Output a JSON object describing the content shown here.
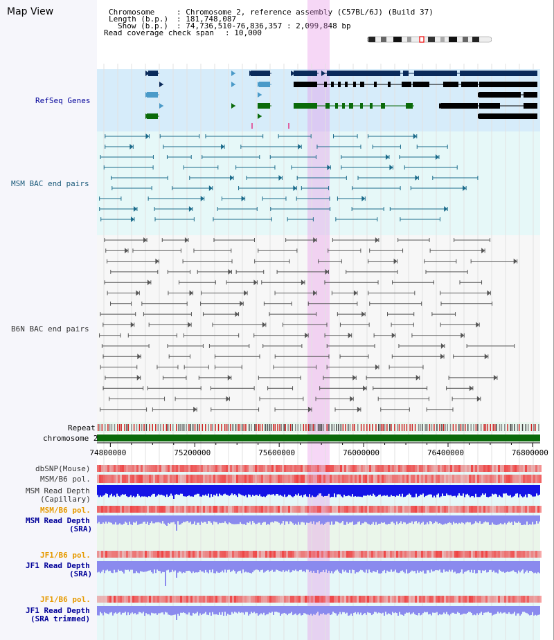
{
  "title": "Map View",
  "header": {
    "chromosome_key": "Chromosome",
    "chromosome_val": ": Chromosome 2, reference assembly (C57BL/6J) (Build 37)",
    "length_key": "Length (b.p.)",
    "length_val": ": 181,748,087",
    "show_key": "Show (b.p.)",
    "show_val": ": 74,736,510-76,836,357 : 2,099,848 bp",
    "coverage_key": "Read coverage check span",
    "coverage_val": ": 10,000"
  },
  "tracks": {
    "refseq": "RefSeq Genes",
    "msm_bac": "MSM BAC end pairs",
    "b6n_bac": "B6N BAC end pairs",
    "repeat": "Repeat",
    "chromosome": "chromosome 2",
    "dbsnp": "dbSNP(Mouse)",
    "msm_b6_pol": "MSM/B6 pol.",
    "msm_depth_cap_1": "MSM Read Depth",
    "msm_depth_cap_2": "(Capillary)",
    "msm_b6_pol2": "MSM/B6 pol.",
    "msm_depth_sra_1": "MSM Read Depth",
    "msm_depth_sra_2": "(SRA)",
    "jf1_b6_pol": "JF1/B6 pol.",
    "jf1_depth_sra_1": "JF1 Read Depth",
    "jf1_depth_sra_2": "(SRA)",
    "jf1_b6_pol2": "JF1/B6 pol.",
    "jf1_depth_trim_1": "JF1 Read Depth",
    "jf1_depth_trim_2": "(SRA trimmed)"
  },
  "axis": {
    "ticks": [
      "74800000",
      "75200000",
      "75600000",
      "76000000",
      "76400000",
      "76800000"
    ],
    "tick_values": [
      74800000,
      75200000,
      75600000,
      76000000,
      76400000,
      76800000
    ]
  },
  "colors": {
    "refseq_bg": "#d6ecfa",
    "msm_bg": "#e6f8f8",
    "b6n_bg": "#f6f6f6",
    "gene_dark": "#0a2a5a",
    "gene_light": "#4a9ac8",
    "gene_green": "#0a6a0a",
    "gene_black": "#000000",
    "msm_pair": "#1a6a8a",
    "b6n_pair": "#555555",
    "chrom_bar": "#0a6a0a",
    "depth_blue": "#1414e6",
    "depth_light": "#8a8aee",
    "pol_red": "#ee4444",
    "orange_label": "#e69a00",
    "navy_label": "#000099",
    "highlight": "#e88ce8"
  }
}
